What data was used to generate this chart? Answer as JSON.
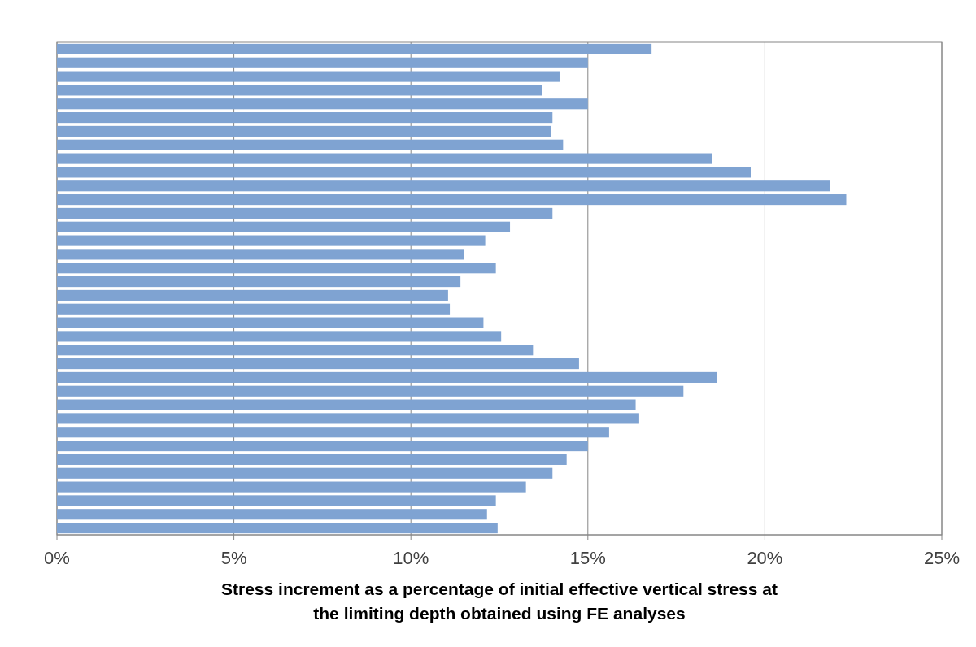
{
  "chart_data": {
    "type": "bar",
    "orientation": "horizontal",
    "xlabel": "Stress increment as a percentage of initial effective vertical stress at the limiting depth obtained using FE analyses",
    "categories": [
      null,
      null,
      null,
      null,
      null,
      null,
      null,
      null,
      null,
      null,
      null,
      null,
      null,
      null,
      null,
      null,
      null,
      null,
      null,
      null,
      null,
      null,
      null,
      null,
      null,
      null,
      null,
      null,
      null,
      null,
      null,
      null,
      null,
      null,
      null,
      null
    ],
    "values": [
      16.8,
      15.0,
      14.2,
      13.7,
      15.0,
      14.0,
      13.95,
      14.3,
      18.5,
      19.6,
      21.85,
      22.3,
      14.0,
      12.8,
      12.1,
      11.5,
      12.4,
      11.4,
      11.05,
      11.1,
      12.05,
      12.55,
      13.45,
      14.75,
      18.65,
      17.7,
      16.35,
      16.45,
      15.6,
      15.0,
      14.4,
      14.0,
      13.25,
      12.4,
      12.15,
      12.45
    ],
    "color": "#7fa3d2",
    "xlim": [
      0,
      25
    ],
    "xticks": [
      {
        "value": 0,
        "label": "0%"
      },
      {
        "value": 5,
        "label": "5%"
      },
      {
        "value": 10,
        "label": "10%"
      },
      {
        "value": 15,
        "label": "15%"
      },
      {
        "value": 20,
        "label": "20%"
      },
      {
        "value": 25,
        "label": "25%"
      }
    ],
    "grid": "x"
  }
}
